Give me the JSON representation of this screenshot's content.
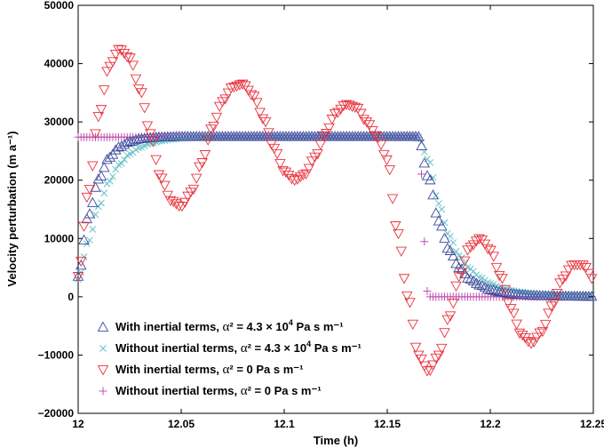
{
  "chart_data": {
    "type": "scatter",
    "title": "",
    "xlabel": "Time (h)",
    "ylabel": "Velocity perturbation (m a⁻¹)",
    "xlim": [
      12,
      12.25
    ],
    "ylim": [
      -20000,
      50000
    ],
    "xticks": [
      12,
      12.05,
      12.1,
      12.15,
      12.2,
      12.25
    ],
    "xtick_labels": [
      "12",
      "12.05",
      "12.1",
      "12.15",
      "12.2",
      "12.25"
    ],
    "yticks": [
      -20000,
      -10000,
      0,
      10000,
      20000,
      30000,
      40000,
      50000
    ],
    "ytick_labels": [
      "−20000",
      "−10000",
      "0",
      "10000",
      "20000",
      "30000",
      "40000",
      "50000"
    ],
    "grid": false,
    "legend_position": "bottom-left",
    "legend": [
      {
        "prefix": "With inertial terms, ",
        "alpha": "α",
        "mid": "² = 4.3 × 10",
        "exp": "4",
        "suffix": " Pa s m⁻¹",
        "marker": "triangle-up",
        "color": "#3a4a9c"
      },
      {
        "prefix": "Without inertial terms, ",
        "alpha": "α",
        "mid": "² = 4.3 × 10",
        "exp": "4",
        "suffix": " Pa s m⁻¹",
        "marker": "x",
        "color": "#66c0c8"
      },
      {
        "prefix": "With inertial terms, ",
        "alpha": "α",
        "mid": "² = 0 Pa s m⁻¹",
        "exp": "",
        "suffix": "",
        "marker": "triangle-down",
        "color": "#e8323c"
      },
      {
        "prefix": "Without inertial terms, ",
        "alpha": "α",
        "mid": "² = 0 Pa s m⁻¹",
        "exp": "",
        "suffix": "",
        "marker": "plus",
        "color": "#c050b0"
      }
    ],
    "x": [
      12.0,
      12.005,
      12.01,
      12.015,
      12.02,
      12.025,
      12.03,
      12.035,
      12.04,
      12.045,
      12.05,
      12.055,
      12.06,
      12.065,
      12.07,
      12.075,
      12.08,
      12.085,
      12.09,
      12.095,
      12.1,
      12.105,
      12.11,
      12.115,
      12.12,
      12.125,
      12.13,
      12.135,
      12.14,
      12.145,
      12.15,
      12.155,
      12.16,
      12.165,
      12.17,
      12.175,
      12.18,
      12.185,
      12.19,
      12.195,
      12.2,
      12.205,
      12.21,
      12.215,
      12.22,
      12.225,
      12.23,
      12.235,
      12.24,
      12.245,
      12.25
    ],
    "series": [
      {
        "name": "With inertial terms, α² = 4.3 × 10⁴ Pa s m⁻¹",
        "marker": "triangle-up",
        "color": "#3a4a9c",
        "values": [
          3500,
          14000,
          20200,
          23900,
          25700,
          26600,
          27100,
          27300,
          27400,
          27450,
          27500,
          27500,
          27500,
          27500,
          27500,
          27500,
          27500,
          27500,
          27500,
          27500,
          27500,
          27500,
          27500,
          27500,
          27500,
          27500,
          27500,
          27500,
          27500,
          27500,
          27500,
          27500,
          27500,
          27500,
          20500,
          13000,
          8000,
          5000,
          3000,
          2000,
          1200,
          800,
          500,
          350,
          250,
          200,
          150,
          120,
          100,
          80,
          60
        ]
      },
      {
        "name": "Without inertial terms, α² = 4.3 × 10⁴ Pa s m⁻¹",
        "marker": "x",
        "color": "#66c0c8",
        "values": [
          3000,
          9500,
          15500,
          19800,
          22700,
          24500,
          25600,
          26300,
          26700,
          27000,
          27150,
          27250,
          27300,
          27350,
          27400,
          27400,
          27400,
          27400,
          27400,
          27400,
          27400,
          27400,
          27400,
          27400,
          27400,
          27400,
          27400,
          27400,
          27400,
          27400,
          27400,
          27400,
          27400,
          27400,
          23500,
          16000,
          10500,
          7000,
          4800,
          3300,
          2300,
          1600,
          1100,
          800,
          600,
          450,
          350,
          280,
          220,
          180,
          150
        ]
      },
      {
        "name": "With inertial terms, α² = 0 Pa s m⁻¹",
        "marker": "triangle-down",
        "color": "#e8323c",
        "values": [
          3500,
          18000,
          31000,
          39500,
          42500,
          41000,
          35500,
          28000,
          20500,
          16500,
          15500,
          18000,
          23000,
          29000,
          33500,
          36000,
          36500,
          34500,
          30500,
          25500,
          21500,
          20000,
          21000,
          24000,
          28000,
          31500,
          33000,
          32500,
          30000,
          27500,
          23500,
          11000,
          0,
          -10000,
          -12800,
          -10000,
          -3500,
          3500,
          8500,
          10000,
          8000,
          3500,
          -2000,
          -6500,
          -8000,
          -6000,
          -1500,
          3000,
          5500,
          5500,
          3000
        ]
      },
      {
        "name": "Without inertial terms, α² = 0 Pa s m⁻¹",
        "marker": "plus",
        "color": "#c050b0",
        "values": [
          27400,
          27400,
          27400,
          27400,
          27400,
          27400,
          27400,
          27400,
          27400,
          27400,
          27400,
          27400,
          27400,
          27400,
          27400,
          27400,
          27400,
          27400,
          27400,
          27400,
          27400,
          27400,
          27400,
          27400,
          27400,
          27400,
          27400,
          27400,
          27400,
          27400,
          27400,
          27400,
          27400,
          27400,
          0,
          0,
          0,
          0,
          0,
          0,
          0,
          0,
          0,
          0,
          0,
          0,
          0,
          0,
          0,
          0,
          0
        ]
      }
    ]
  }
}
